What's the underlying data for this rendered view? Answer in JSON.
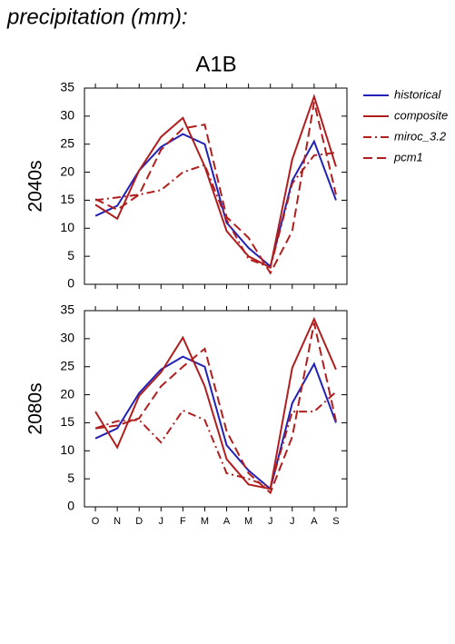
{
  "title": "precipitation (mm):",
  "subtitle": "A1B",
  "chart_data": [
    {
      "type": "line",
      "ylabel": "2040s",
      "ylim": [
        0,
        35
      ],
      "yticks": [
        0,
        5,
        10,
        15,
        20,
        25,
        30,
        35
      ],
      "categories": [
        null,
        null,
        null,
        null,
        null,
        null,
        null,
        null,
        null,
        null,
        null,
        null
      ],
      "legend": "right",
      "series": [
        {
          "name": "historical",
          "color": "#2121b8",
          "style": "solid",
          "values": [
            12.2,
            14,
            20.3,
            24.5,
            26.8,
            25,
            11,
            6.5,
            3.2,
            18.5,
            25.5,
            15
          ]
        },
        {
          "name": "composite",
          "color": "#b01e1e",
          "style": "solid",
          "values": [
            14.2,
            11.7,
            20.3,
            26.3,
            29.7,
            21,
            9.5,
            5,
            3,
            22.3,
            33.5,
            21
          ]
        },
        {
          "name": "miroc_3.2",
          "color": "#b01e1e",
          "style": "dash-dot",
          "values": [
            15,
            15.5,
            16,
            16.8,
            20,
            21.3,
            11.5,
            4.5,
            3,
            18,
            23,
            23.5
          ]
        },
        {
          "name": "pcm1",
          "color": "#b01e1e",
          "style": "dashed",
          "values": [
            15.2,
            13.3,
            16,
            24,
            27.8,
            28.5,
            12,
            8.3,
            2,
            9.5,
            32.5,
            16
          ]
        }
      ]
    },
    {
      "type": "line",
      "ylabel": "2080s",
      "ylim": [
        0,
        35
      ],
      "yticks": [
        0,
        5,
        10,
        15,
        20,
        25,
        30,
        35
      ],
      "categories": [
        "O",
        "N",
        "D",
        "J",
        "F",
        "M",
        "A",
        "M",
        "J",
        "J",
        "A",
        "S"
      ],
      "series": [
        {
          "name": "historical",
          "color": "#2121b8",
          "style": "solid",
          "values": [
            12.2,
            14,
            20.3,
            24.5,
            26.8,
            25,
            11,
            6.5,
            3.2,
            18.5,
            25.5,
            15
          ]
        },
        {
          "name": "composite",
          "color": "#b01e1e",
          "style": "solid",
          "values": [
            17,
            10.6,
            19.8,
            24,
            30.2,
            21.5,
            8.5,
            4,
            3.2,
            24.8,
            33.5,
            24.5
          ]
        },
        {
          "name": "miroc_3.2",
          "color": "#b01e1e",
          "style": "dash-dot",
          "values": [
            14,
            15.3,
            15.5,
            11.5,
            17.2,
            15.5,
            6,
            5,
            3.5,
            17,
            17,
            20.5
          ]
        },
        {
          "name": "pcm1",
          "color": "#b01e1e",
          "style": "dashed",
          "values": [
            14,
            14.5,
            15.8,
            21.5,
            25,
            28.2,
            13.5,
            6,
            2.5,
            12.5,
            32.8,
            15.3
          ]
        }
      ]
    }
  ]
}
